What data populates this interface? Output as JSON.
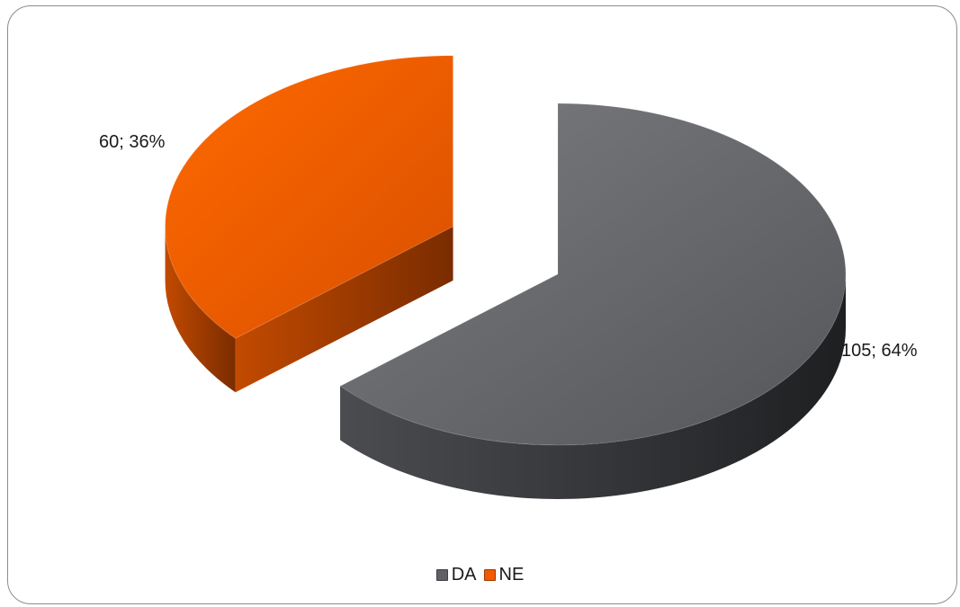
{
  "chart_data": {
    "type": "pie",
    "style": "3d-exploded",
    "categories": [
      "DA",
      "NE"
    ],
    "values": [
      105,
      60
    ],
    "percentages": [
      64,
      36
    ],
    "data_labels": [
      "105; 64%",
      "60; 36%"
    ],
    "colors": [
      "#5f6166",
      "#f05a00"
    ],
    "legend": [
      "DA",
      "NE"
    ],
    "legend_position": "bottom"
  }
}
